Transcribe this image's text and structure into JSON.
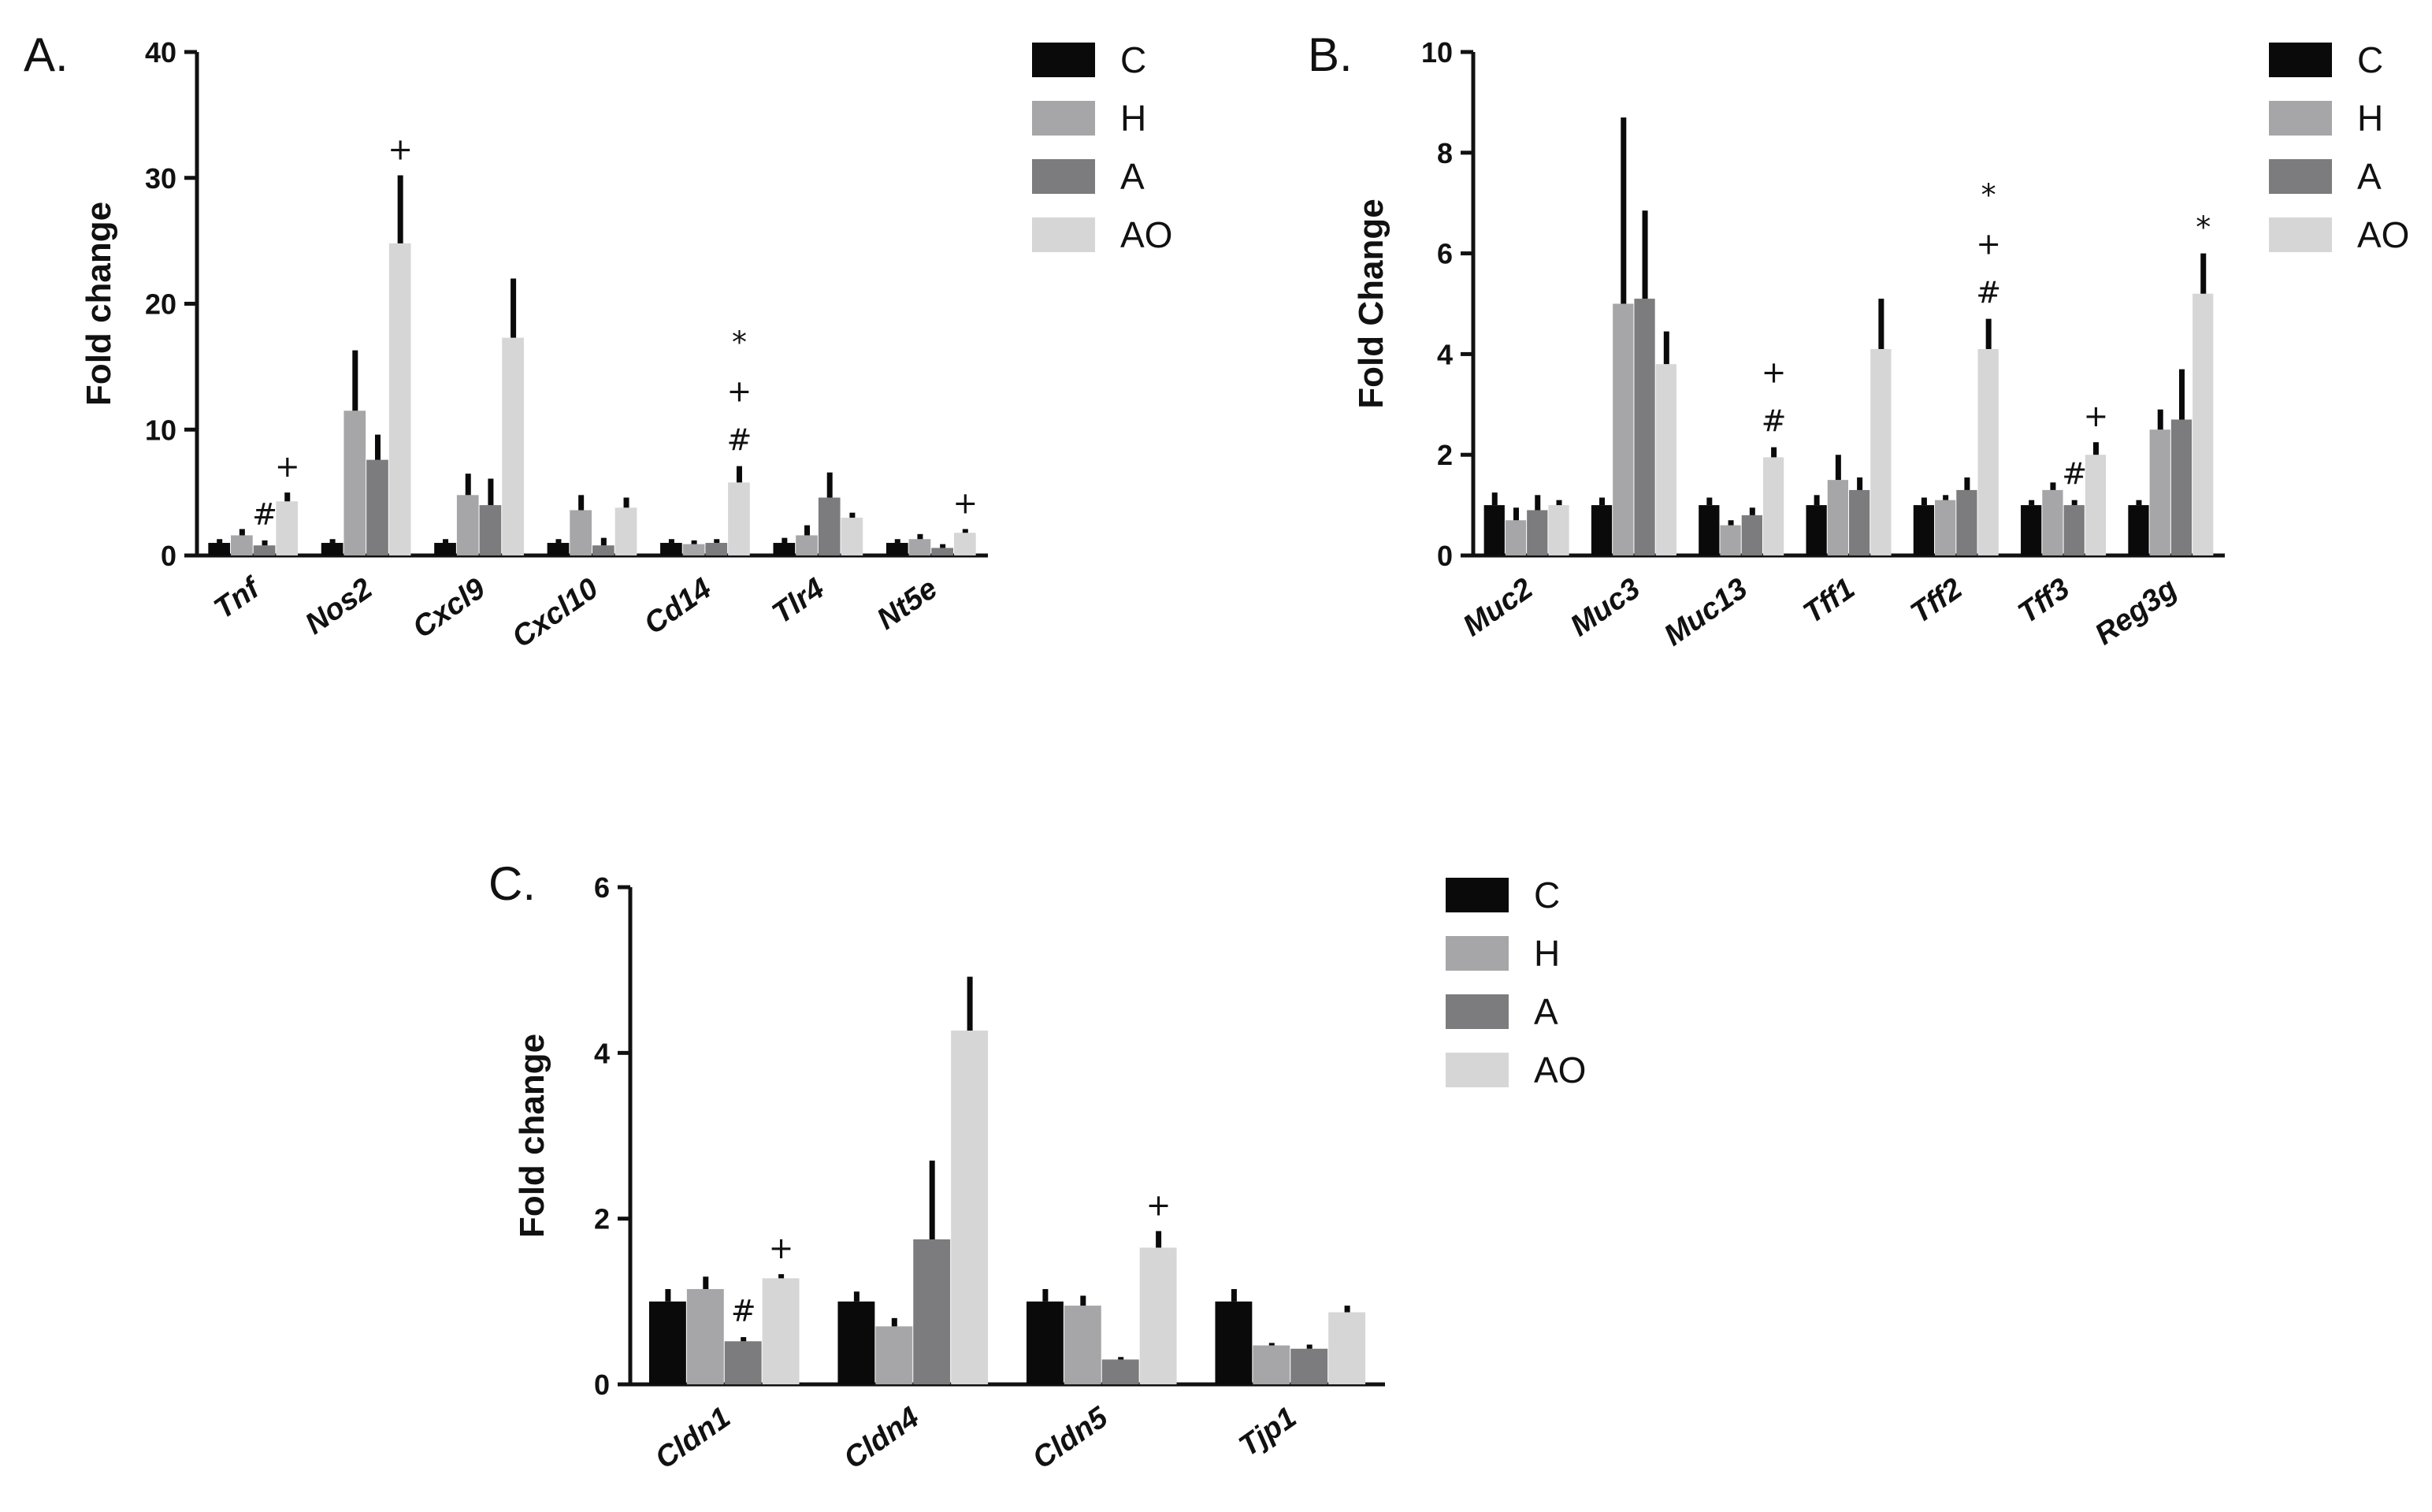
{
  "figure": {
    "colors": {
      "C": "#0a0a0a",
      "H": "#a6a6a8",
      "A": "#7c7c7e",
      "AO": "#d6d6d6",
      "axis": "#111111"
    }
  },
  "chart_data": [
    {
      "panel": "A.",
      "type": "bar",
      "ylabel": "Fold change",
      "ylim": [
        0,
        40
      ],
      "yticks": [
        0,
        10,
        20,
        30,
        40
      ],
      "categories": [
        "Tnf",
        "Nos2",
        "Cxcl9",
        "Cxcl10",
        "Cd14",
        "Tlr4",
        "Nt5e"
      ],
      "series": [
        {
          "name": "C",
          "values": [
            1.0,
            1.0,
            1.0,
            1.0,
            1.0,
            1.0,
            1.0
          ],
          "errors": [
            0.3,
            0.3,
            0.3,
            0.3,
            0.3,
            0.4,
            0.3
          ]
        },
        {
          "name": "H",
          "values": [
            1.6,
            11.5,
            4.8,
            3.6,
            0.9,
            1.6,
            1.3
          ],
          "errors": [
            0.5,
            4.8,
            1.7,
            1.2,
            0.3,
            0.8,
            0.4
          ]
        },
        {
          "name": "A",
          "values": [
            0.8,
            7.6,
            4.0,
            0.8,
            1.0,
            4.6,
            0.6
          ],
          "errors": [
            0.4,
            2.0,
            2.1,
            0.6,
            0.3,
            2.0,
            0.3
          ]
        },
        {
          "name": "AO",
          "values": [
            4.3,
            24.8,
            17.3,
            3.8,
            5.8,
            3.0,
            1.8
          ],
          "errors": [
            0.7,
            5.4,
            4.7,
            0.8,
            1.3,
            0.4,
            0.3
          ]
        }
      ],
      "annotations": [
        {
          "category": "Tnf",
          "series": "A",
          "text": "#"
        },
        {
          "category": "Tnf",
          "series": "AO",
          "text": "+"
        },
        {
          "category": "Nos2",
          "series": "AO",
          "text": "+"
        },
        {
          "category": "Cd14",
          "series": "AO",
          "text": "*\n+\n#"
        },
        {
          "category": "Nt5e",
          "series": "AO",
          "text": "+"
        }
      ],
      "legend": [
        "C",
        "H",
        "A",
        "AO"
      ]
    },
    {
      "panel": "B.",
      "type": "bar",
      "ylabel": "Fold Change",
      "ylim": [
        0,
        10
      ],
      "yticks": [
        0,
        2,
        4,
        6,
        8,
        10
      ],
      "categories": [
        "Muc2",
        "Muc3",
        "Muc13",
        "Tff1",
        "Tff2",
        "Tff3",
        "Reg3g"
      ],
      "series": [
        {
          "name": "C",
          "values": [
            1.0,
            1.0,
            1.0,
            1.0,
            1.0,
            1.0,
            1.0
          ],
          "errors": [
            0.25,
            0.15,
            0.15,
            0.2,
            0.15,
            0.1,
            0.1
          ]
        },
        {
          "name": "H",
          "values": [
            0.7,
            5.0,
            0.6,
            1.5,
            1.1,
            1.3,
            2.5
          ],
          "errors": [
            0.25,
            3.7,
            0.1,
            0.5,
            0.1,
            0.15,
            0.4
          ]
        },
        {
          "name": "A",
          "values": [
            0.9,
            5.1,
            0.8,
            1.3,
            1.3,
            1.0,
            2.7
          ],
          "errors": [
            0.3,
            1.75,
            0.15,
            0.25,
            0.25,
            0.1,
            1.0
          ]
        },
        {
          "name": "AO",
          "values": [
            1.0,
            3.8,
            1.95,
            4.1,
            4.1,
            2.0,
            5.2
          ],
          "errors": [
            0.1,
            0.65,
            0.2,
            1.0,
            0.6,
            0.25,
            0.8
          ]
        }
      ],
      "annotations": [
        {
          "category": "Muc13",
          "series": "AO",
          "text": "+\n#"
        },
        {
          "category": "Tff2",
          "series": "AO",
          "text": "*\n+\n#"
        },
        {
          "category": "Tff3",
          "series": "A",
          "text": "#"
        },
        {
          "category": "Tff3",
          "series": "AO",
          "text": "+"
        },
        {
          "category": "Reg3g",
          "series": "AO",
          "text": "*"
        }
      ],
      "legend": [
        "C",
        "H",
        "A",
        "AO"
      ]
    },
    {
      "panel": "C.",
      "type": "bar",
      "ylabel": "Fold change",
      "ylim": [
        0,
        6
      ],
      "yticks": [
        0,
        2,
        4,
        6
      ],
      "categories": [
        "Cldn1",
        "Cldn4",
        "Cldn5",
        "Tjp1"
      ],
      "series": [
        {
          "name": "C",
          "values": [
            1.0,
            1.0,
            1.0,
            1.0
          ],
          "errors": [
            0.15,
            0.12,
            0.15,
            0.15
          ]
        },
        {
          "name": "H",
          "values": [
            1.15,
            0.7,
            0.95,
            0.47
          ],
          "errors": [
            0.15,
            0.1,
            0.12,
            0.03
          ]
        },
        {
          "name": "A",
          "values": [
            0.52,
            1.75,
            0.3,
            0.43
          ],
          "errors": [
            0.05,
            0.95,
            0.03,
            0.05
          ]
        },
        {
          "name": "AO",
          "values": [
            1.28,
            4.27,
            1.65,
            0.87
          ],
          "errors": [
            0.05,
            0.65,
            0.2,
            0.08
          ]
        }
      ],
      "annotations": [
        {
          "category": "Cldn1",
          "series": "A",
          "text": "#"
        },
        {
          "category": "Cldn1",
          "series": "AO",
          "text": "+"
        },
        {
          "category": "Cldn5",
          "series": "AO",
          "text": "+"
        }
      ],
      "legend": [
        "C",
        "H",
        "A",
        "AO"
      ]
    }
  ]
}
